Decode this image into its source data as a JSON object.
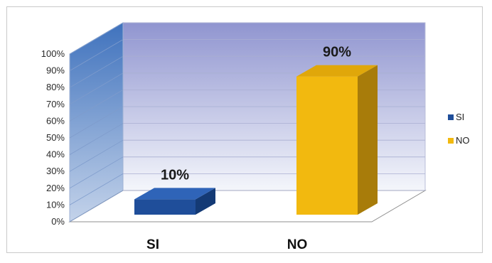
{
  "chart_data": {
    "type": "bar",
    "categories": [
      "SI",
      "NO"
    ],
    "values": [
      10,
      90
    ],
    "data_labels": [
      "10%",
      "90%"
    ],
    "ylim": [
      0,
      100
    ],
    "y_ticks": [
      "0%",
      "10%",
      "20%",
      "30%",
      "40%",
      "50%",
      "60%",
      "70%",
      "80%",
      "90%",
      "100%"
    ],
    "legend": [
      {
        "label": "SI",
        "color": "#1f4e9a"
      },
      {
        "label": "NO",
        "color": "#f2b90f"
      }
    ],
    "legend_position": "right",
    "grid": true,
    "style": "3d",
    "colors": {
      "SI_front": "#1f4e9a",
      "SI_top": "#2f64b8",
      "SI_side": "#143a75",
      "NO_front": "#f2b90f",
      "NO_top": "#e0a70a",
      "NO_side": "#a87c0a",
      "back_wall_top": "#9095d0",
      "back_wall_bottom": "#f4f6fb",
      "side_wall_top": "#3f72bd",
      "side_wall_bottom": "#c4d3ea"
    }
  }
}
